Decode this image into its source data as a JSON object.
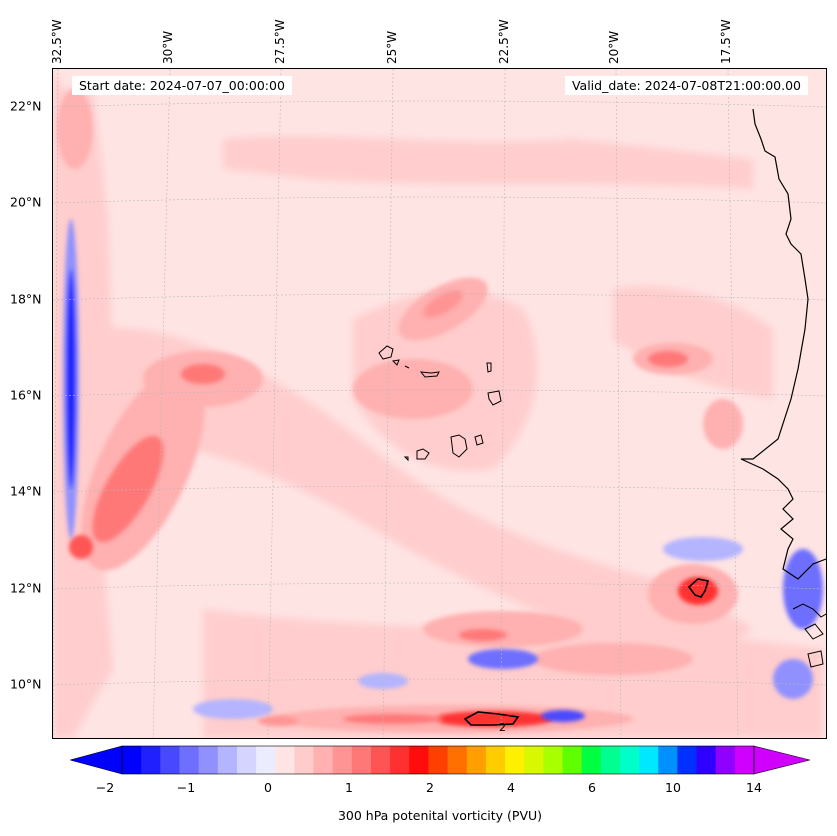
{
  "header": {
    "start_date": "Start date: 2024-07-07_00:00:00",
    "valid_date": "Valid_date: 2024-07-08T21:00:00.00"
  },
  "lon_labels": [
    "32.5°W",
    "30°W",
    "27.5°W",
    "25°W",
    "22.5°W",
    "20°W",
    "17.5°W"
  ],
  "lat_labels": [
    "22°N",
    "20°N",
    "18°N",
    "16°N",
    "14°N",
    "12°N",
    "10°N"
  ],
  "contour_label": "2",
  "colorbar": {
    "title": "300 hPa potenital vorticity (PVU)",
    "tick_labels": [
      "−2",
      "−1",
      "0",
      "1",
      "2",
      "4",
      "6",
      "10",
      "14"
    ],
    "colors": [
      "#0000ff",
      "#2020ff",
      "#4848ff",
      "#6e6eff",
      "#9090ff",
      "#b4b4ff",
      "#d4d4ff",
      "#ececff",
      "#ffe4e4",
      "#ffcccc",
      "#ffb0b0",
      "#ff9494",
      "#ff7878",
      "#ff5454",
      "#ff3030",
      "#ff0c0c",
      "#ff4000",
      "#ff7000",
      "#ffa000",
      "#ffcc00",
      "#fff000",
      "#d8f800",
      "#a8ff00",
      "#60ff00",
      "#00ff40",
      "#00ff90",
      "#00ffc8",
      "#00e8ff",
      "#0090ff",
      "#0030ff",
      "#3000ff",
      "#9000ff",
      "#d000ff"
    ],
    "extend_low_color": "#0000ff",
    "extend_high_color": "#d000ff"
  }
}
